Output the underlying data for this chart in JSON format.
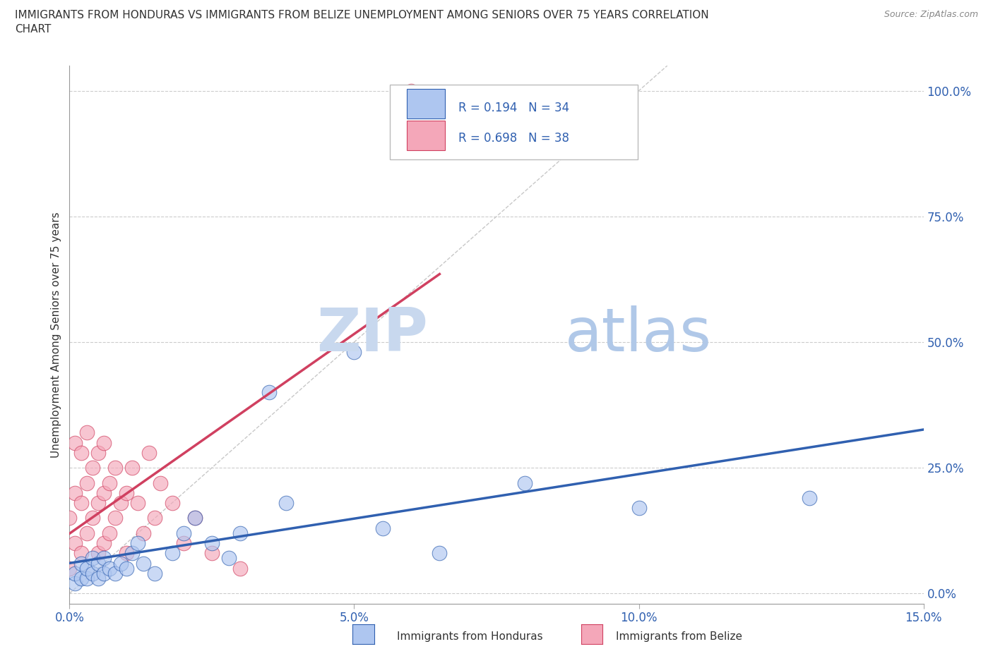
{
  "title": "IMMIGRANTS FROM HONDURAS VS IMMIGRANTS FROM BELIZE UNEMPLOYMENT AMONG SENIORS OVER 75 YEARS CORRELATION\nCHART",
  "source": "Source: ZipAtlas.com",
  "ylabel": "Unemployment Among Seniors over 75 years",
  "legend_label_1": "Immigrants from Honduras",
  "legend_label_2": "Immigrants from Belize",
  "R1": 0.194,
  "N1": 34,
  "R2": 0.698,
  "N2": 38,
  "color_honduras": "#aec6f0",
  "color_belize": "#f4a7b9",
  "line_color_honduras": "#3060b0",
  "line_color_belize": "#d04060",
  "watermark_zip": "ZIP",
  "watermark_atlas": "atlas",
  "xlim": [
    0.0,
    0.15
  ],
  "ylim": [
    -0.02,
    1.05
  ],
  "xticks": [
    0.0,
    0.05,
    0.1,
    0.15
  ],
  "xtick_labels": [
    "0.0%",
    "5.0%",
    "10.0%",
    "15.0%"
  ],
  "yticks_right": [
    0.0,
    0.25,
    0.5,
    0.75,
    1.0
  ],
  "ytick_labels_right": [
    "0.0%",
    "25.0%",
    "50.0%",
    "75.0%",
    "100.0%"
  ],
  "honduras_x": [
    0.001,
    0.001,
    0.002,
    0.002,
    0.003,
    0.003,
    0.004,
    0.004,
    0.005,
    0.005,
    0.006,
    0.006,
    0.007,
    0.008,
    0.009,
    0.01,
    0.011,
    0.012,
    0.013,
    0.015,
    0.018,
    0.02,
    0.022,
    0.025,
    0.028,
    0.03,
    0.035,
    0.038,
    0.05,
    0.055,
    0.065,
    0.08,
    0.1,
    0.13
  ],
  "honduras_y": [
    0.02,
    0.04,
    0.03,
    0.06,
    0.03,
    0.05,
    0.04,
    0.07,
    0.03,
    0.06,
    0.04,
    0.07,
    0.05,
    0.04,
    0.06,
    0.05,
    0.08,
    0.1,
    0.06,
    0.04,
    0.08,
    0.12,
    0.15,
    0.1,
    0.07,
    0.12,
    0.4,
    0.18,
    0.48,
    0.13,
    0.08,
    0.22,
    0.17,
    0.19
  ],
  "belize_x": [
    0.0,
    0.0,
    0.001,
    0.001,
    0.001,
    0.002,
    0.002,
    0.002,
    0.003,
    0.003,
    0.003,
    0.004,
    0.004,
    0.005,
    0.005,
    0.005,
    0.006,
    0.006,
    0.006,
    0.007,
    0.007,
    0.008,
    0.008,
    0.009,
    0.01,
    0.01,
    0.011,
    0.012,
    0.013,
    0.014,
    0.015,
    0.016,
    0.018,
    0.02,
    0.022,
    0.025,
    0.03,
    0.06
  ],
  "belize_y": [
    0.05,
    0.15,
    0.1,
    0.2,
    0.3,
    0.08,
    0.18,
    0.28,
    0.12,
    0.22,
    0.32,
    0.15,
    0.25,
    0.08,
    0.18,
    0.28,
    0.1,
    0.2,
    0.3,
    0.12,
    0.22,
    0.15,
    0.25,
    0.18,
    0.08,
    0.2,
    0.25,
    0.18,
    0.12,
    0.28,
    0.15,
    0.22,
    0.18,
    0.1,
    0.15,
    0.08,
    0.05,
    1.0
  ],
  "belize_trend_x": [
    0.0,
    0.065
  ],
  "belize_trend_y_intercept": 0.02,
  "belize_trend_slope": 8.5
}
